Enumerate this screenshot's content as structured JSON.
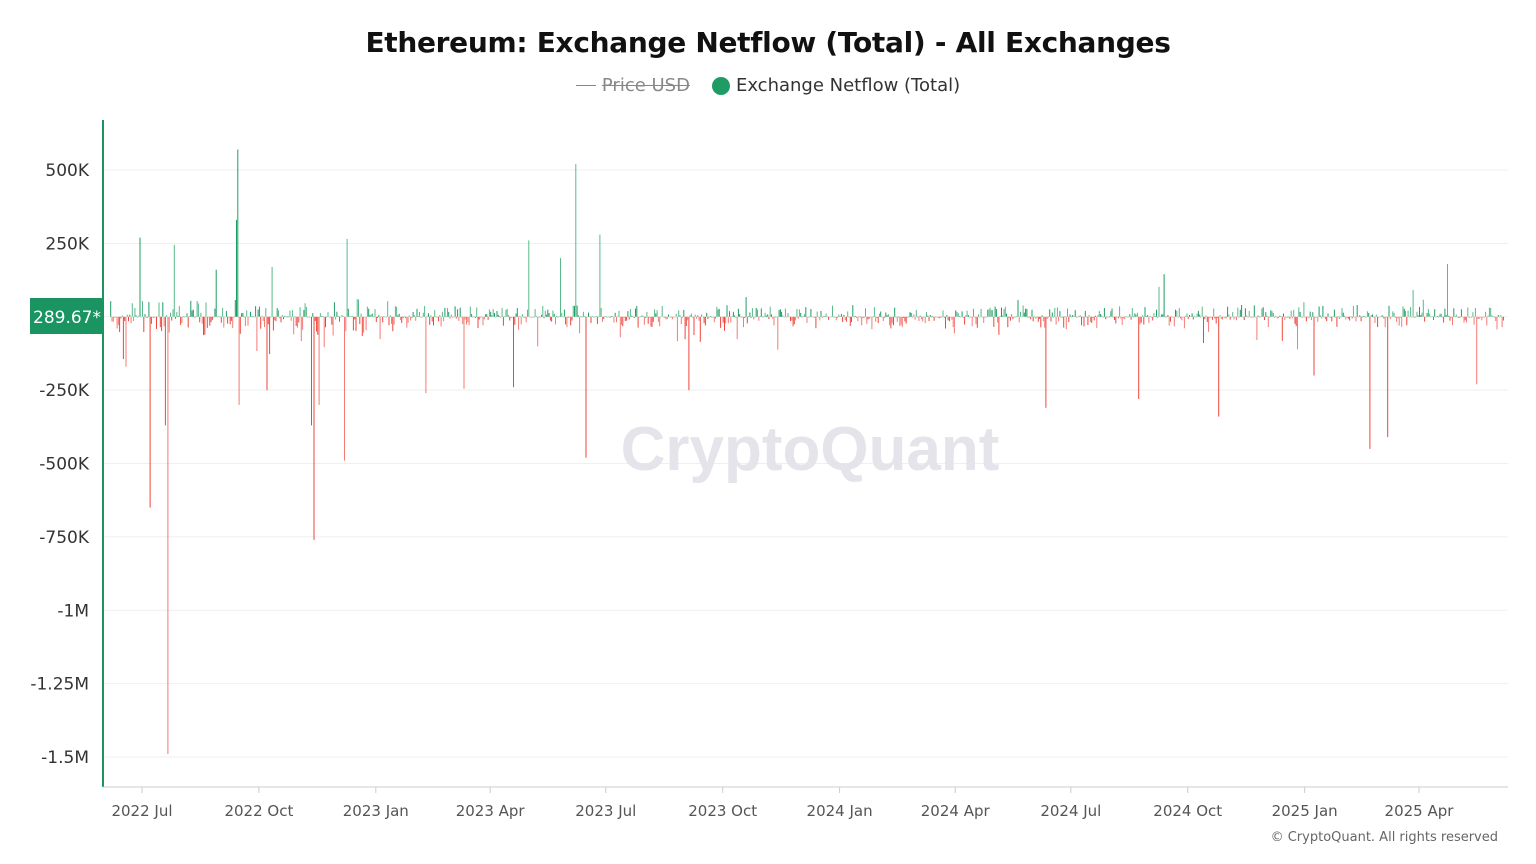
{
  "title": "Ethereum: Exchange Netflow (Total) - All Exchanges",
  "legend": {
    "price": "Price USD",
    "netflow": "Exchange Netflow (Total)"
  },
  "current_price_label": "289.67*",
  "watermark": "CryptoQuant",
  "copyright": "© CryptoQuant. All rights reserved",
  "colors": {
    "positive": "#1e9c63",
    "negative": "#f0453b",
    "accent": "#1a9460",
    "grid": "#efefef"
  },
  "chart_data": {
    "type": "bar",
    "title": "Ethereum: Exchange Netflow (Total) - All Exchanges",
    "xlabel": "",
    "ylabel": "",
    "ylim": [
      -1500000,
      500000
    ],
    "yticks": [
      500000,
      250000,
      0,
      -250000,
      -500000,
      -750000,
      -1000000,
      -1250000,
      -1500000
    ],
    "ytick_labels": [
      "500K",
      "250K",
      "",
      "-250K",
      "-500K",
      "-750K",
      "-1M",
      "-1.25M",
      "-1.5M"
    ],
    "xticks": [
      "2022-07-01",
      "2022-10-01",
      "2023-01-01",
      "2023-04-01",
      "2023-07-01",
      "2023-10-01",
      "2024-01-01",
      "2024-04-01",
      "2024-07-01",
      "2024-10-01",
      "2025-01-01",
      "2025-04-01"
    ],
    "xtick_labels": [
      "2022 Jul",
      "2022 Oct",
      "2023 Jan",
      "2023 Apr",
      "2023 Jul",
      "2023 Oct",
      "2024 Jan",
      "2024 Apr",
      "2024 Jul",
      "2024 Oct",
      "2025 Jan",
      "2025 Apr"
    ],
    "date_range": [
      "2022-06-06",
      "2025-06-06"
    ],
    "grid": true,
    "legend_position": "top-center",
    "background_noise": {
      "typical_abs": 40000,
      "seed": 7
    },
    "notable_points": [
      {
        "date": "2022-06-18",
        "value": -170000
      },
      {
        "date": "2022-06-29",
        "value": 270000
      },
      {
        "date": "2022-07-07",
        "value": -650000
      },
      {
        "date": "2022-07-19",
        "value": -370000
      },
      {
        "date": "2022-07-21",
        "value": -1490000
      },
      {
        "date": "2022-07-26",
        "value": 245000
      },
      {
        "date": "2022-09-13",
        "value": 330000
      },
      {
        "date": "2022-09-14",
        "value": 570000
      },
      {
        "date": "2022-09-15",
        "value": -300000
      },
      {
        "date": "2022-10-07",
        "value": -250000
      },
      {
        "date": "2022-10-11",
        "value": 170000
      },
      {
        "date": "2022-11-11",
        "value": -370000
      },
      {
        "date": "2022-11-13",
        "value": -760000
      },
      {
        "date": "2022-11-17",
        "value": -300000
      },
      {
        "date": "2022-12-07",
        "value": -490000
      },
      {
        "date": "2022-12-09",
        "value": 265000
      },
      {
        "date": "2023-02-09",
        "value": -260000
      },
      {
        "date": "2023-03-11",
        "value": -245000
      },
      {
        "date": "2023-04-19",
        "value": -240000
      },
      {
        "date": "2023-05-01",
        "value": 260000
      },
      {
        "date": "2023-05-26",
        "value": 200000
      },
      {
        "date": "2023-06-07",
        "value": 520000
      },
      {
        "date": "2023-06-15",
        "value": -480000
      },
      {
        "date": "2023-06-26",
        "value": 280000
      },
      {
        "date": "2023-09-04",
        "value": -250000
      },
      {
        "date": "2024-06-11",
        "value": -310000
      },
      {
        "date": "2024-08-23",
        "value": -280000
      },
      {
        "date": "2024-09-12",
        "value": 145000
      },
      {
        "date": "2024-10-25",
        "value": -340000
      },
      {
        "date": "2025-01-08",
        "value": -200000
      },
      {
        "date": "2025-02-21",
        "value": -450000
      },
      {
        "date": "2025-03-07",
        "value": -410000
      },
      {
        "date": "2025-04-23",
        "value": 180000
      },
      {
        "date": "2025-05-16",
        "value": -230000
      }
    ]
  }
}
